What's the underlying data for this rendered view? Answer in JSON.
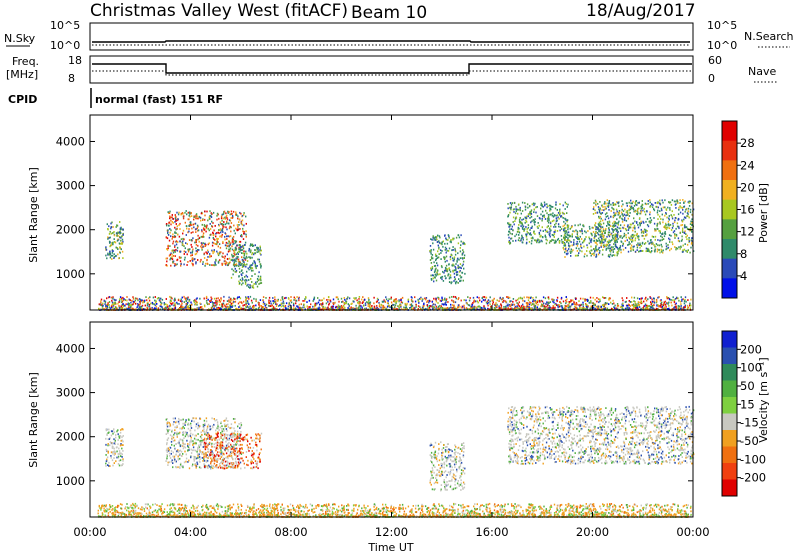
{
  "header": {
    "title": "Christmas Valley West (fitACF)",
    "beam": "Beam 10",
    "date": "18/Aug/2017"
  },
  "top_panels": {
    "nsky_label": "N.Sky",
    "nsky_ticks": [
      "10^5",
      "10^0"
    ],
    "nsearch_label": "N.Search",
    "nsearch_ticks": [
      "10^5",
      "10^0"
    ],
    "freq_label": "Freq.",
    "freq_unit": "[MHz]",
    "freq_ticks": [
      "18",
      "8"
    ],
    "nave_label": "Nave",
    "nave_ticks": [
      "60",
      "0"
    ],
    "cpid_label": "CPID",
    "cpid_text": "normal (fast) 151 RF"
  },
  "colors": {
    "power_scale": [
      "#0010e8",
      "#2a4ab8",
      "#2f8a6a",
      "#55a040",
      "#a8c820",
      "#f0b020",
      "#f07010",
      "#e83010",
      "#e00000"
    ],
    "velocity_scale": [
      "#e00000",
      "#f04010",
      "#f07010",
      "#f0a020",
      "#c8c8c0",
      "#7ed040",
      "#50b040",
      "#2f8a5a",
      "#2a50b0",
      "#1020d0"
    ]
  },
  "chart_data": [
    {
      "type": "heatmap",
      "name": "power",
      "ylabel": "Slant Range [km]",
      "yticks": [
        "4000",
        "3000",
        "2000",
        "1000"
      ],
      "ylim": [
        180,
        4600
      ],
      "xlim": [
        0,
        24
      ],
      "colorbar_label": "Power [dB]",
      "colorbar_ticks": [
        "28",
        "24",
        "20",
        "16",
        "12",
        "8",
        "4"
      ],
      "scatter_regions": [
        {
          "t": [
            0.6,
            1.3
          ],
          "r": [
            1350,
            2200
          ],
          "level": "green-orange"
        },
        {
          "t": [
            3.0,
            6.2
          ],
          "r": [
            1200,
            2450
          ],
          "level": "orange-red"
        },
        {
          "t": [
            5.6,
            6.8
          ],
          "r": [
            700,
            1700
          ],
          "level": "green"
        },
        {
          "t": [
            13.5,
            14.9
          ],
          "r": [
            800,
            1900
          ],
          "level": "green"
        },
        {
          "t": [
            16.6,
            19.0
          ],
          "r": [
            1700,
            2650
          ],
          "level": "green"
        },
        {
          "t": [
            18.8,
            21.0
          ],
          "r": [
            1400,
            2150
          ],
          "level": "green-orange"
        },
        {
          "t": [
            20.0,
            24.0
          ],
          "r": [
            1500,
            2700
          ],
          "level": "green-orange"
        },
        {
          "t": [
            0.3,
            23.9
          ],
          "r": [
            200,
            500
          ],
          "level": "ground-scatter"
        }
      ]
    },
    {
      "type": "heatmap",
      "name": "velocity",
      "ylabel": "Slant Range [km]",
      "yticks": [
        "4000",
        "3000",
        "2000",
        "1000"
      ],
      "ylim": [
        180,
        4600
      ],
      "xlim": [
        0,
        24
      ],
      "xlabel": "Time UT",
      "xticks": [
        "00:00",
        "04:00",
        "08:00",
        "12:00",
        "16:00",
        "20:00",
        "00:00"
      ],
      "colorbar_label": "Velocity [m s⁻¹]",
      "colorbar_ticks": [
        "200",
        "100",
        "50",
        "15",
        "-15",
        "-50",
        "-100",
        "-200"
      ],
      "scatter_regions": [
        {
          "t": [
            0.6,
            1.3
          ],
          "r": [
            1350,
            2200
          ],
          "level": "gray"
        },
        {
          "t": [
            3.0,
            6.0
          ],
          "r": [
            1300,
            2450
          ],
          "level": "gray"
        },
        {
          "t": [
            4.5,
            6.8
          ],
          "r": [
            1300,
            2100
          ],
          "level": "orange-red"
        },
        {
          "t": [
            13.5,
            14.9
          ],
          "r": [
            800,
            1900
          ],
          "level": "gray"
        },
        {
          "t": [
            16.6,
            24.0
          ],
          "r": [
            1400,
            2700
          ],
          "level": "gray"
        },
        {
          "t": [
            0.3,
            23.9
          ],
          "r": [
            200,
            500
          ],
          "level": "orange-green"
        }
      ]
    }
  ]
}
